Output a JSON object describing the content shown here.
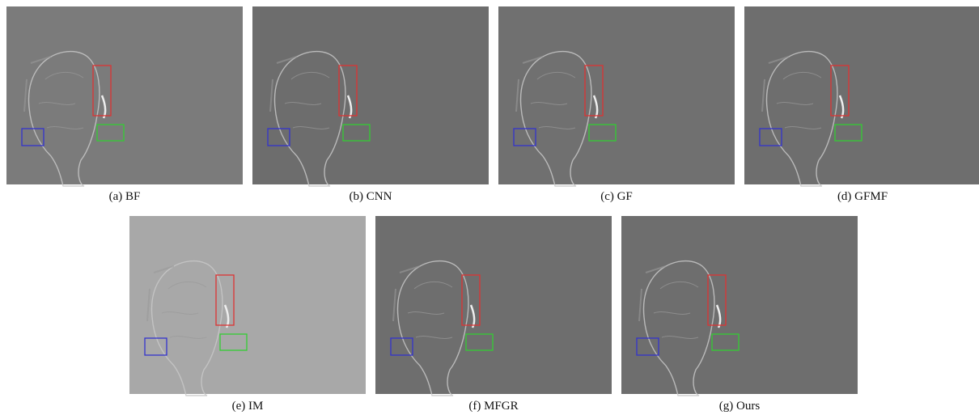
{
  "panels": [
    {
      "caption": "(a) BF"
    },
    {
      "caption": "(b) CNN"
    },
    {
      "caption": "(c) GF"
    },
    {
      "caption": "(d) GFMF"
    },
    {
      "caption": "(e) IM"
    },
    {
      "caption": "(f) MFGR"
    },
    {
      "caption": "(g) Ours"
    }
  ]
}
